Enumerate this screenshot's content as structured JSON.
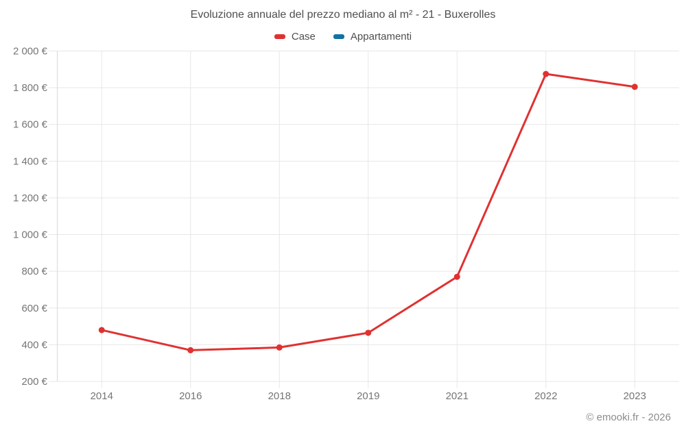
{
  "header": {
    "title": "Evoluzione annuale del prezzo mediano al m² - 21 - Buxerolles"
  },
  "footer": {
    "copyright": "© emooki.fr - 2026"
  },
  "colors": {
    "case_red": "#e03131",
    "appartamenti_blue": "#1273a2",
    "gridline": "#e7e7e7",
    "axis_line": "#d9d9d9",
    "axis_label": "#757575",
    "title_text": "#4e4e4e",
    "copyright_text": "#8c8c8c",
    "background": "#ffffff"
  },
  "chart_data": {
    "type": "line",
    "title": "Evoluzione annuale del prezzo mediano al m² - 21 - Buxerolles",
    "xlabel": "",
    "ylabel": "",
    "categories": [
      "2014",
      "2016",
      "2018",
      "2019",
      "2021",
      "2022",
      "2023"
    ],
    "series": [
      {
        "name": "Case",
        "color": "#e03131",
        "values": [
          480,
          370,
          385,
          465,
          770,
          1875,
          1805
        ]
      },
      {
        "name": "Appartamenti",
        "color": "#1273a2",
        "values": []
      }
    ],
    "ylim": [
      200,
      2000
    ],
    "ytick_step": 200,
    "ytick_labels": [
      "200 €",
      "400 €",
      "600 €",
      "800 €",
      "1 000 €",
      "1 200 €",
      "1 400 €",
      "1 600 €",
      "1 800 €",
      "2 000 €"
    ],
    "grid": true,
    "legend_position": "top"
  }
}
